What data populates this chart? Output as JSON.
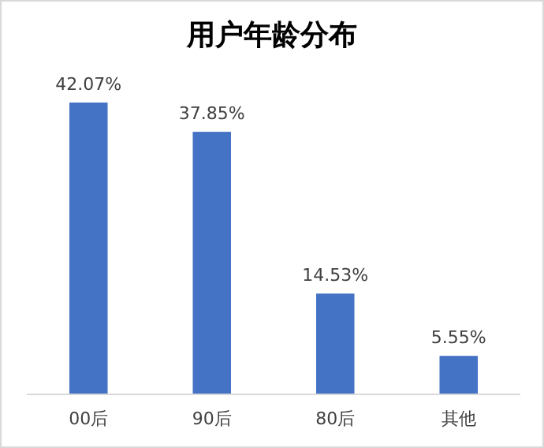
{
  "chart_data": {
    "type": "bar",
    "title": "用户年龄分布",
    "categories": [
      "00后",
      "90后",
      "80后",
      "其他"
    ],
    "values": [
      42.07,
      37.85,
      14.53,
      5.55
    ],
    "color": "#4472c4",
    "value_labels": [
      "42.07%",
      "37.85%",
      "14.53%",
      "5.55%"
    ]
  }
}
